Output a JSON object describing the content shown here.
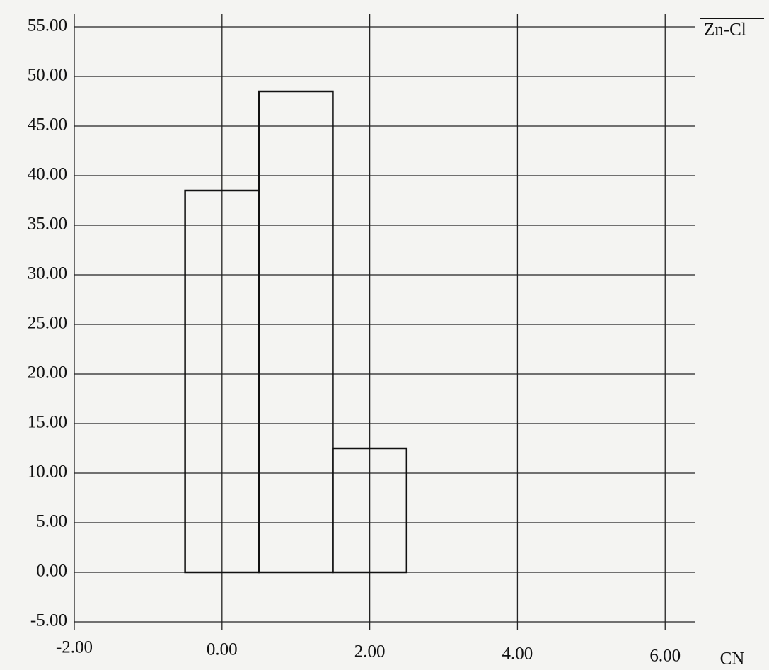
{
  "chart_data": {
    "type": "histogram",
    "x_label": "CN",
    "bins": [
      -0.5,
      0.5,
      1.5,
      2.5
    ],
    "series": [
      {
        "name": "Zn-Cl",
        "color": "#111111",
        "values": [
          38.5,
          48.5,
          12.5
        ]
      }
    ],
    "xlim": [
      -2,
      6.4
    ],
    "xticks": [
      {
        "value": -2,
        "label": "-2.00"
      },
      {
        "value": 0,
        "label": "0.00"
      },
      {
        "value": 2,
        "label": "2.00"
      },
      {
        "value": 4,
        "label": "4.00"
      },
      {
        "value": 6,
        "label": "6.00"
      }
    ],
    "ylim": [
      -5,
      55
    ],
    "yticks": [
      {
        "value": -5,
        "label": "-5.00"
      },
      {
        "value": 0,
        "label": "0.00"
      },
      {
        "value": 5,
        "label": "5.00"
      },
      {
        "value": 10,
        "label": "10.00"
      },
      {
        "value": 15,
        "label": "15.00"
      },
      {
        "value": 20,
        "label": "20.00"
      },
      {
        "value": 25,
        "label": "25.00"
      },
      {
        "value": 30,
        "label": "30.00"
      },
      {
        "value": 35,
        "label": "35.00"
      },
      {
        "value": 40,
        "label": "40.00"
      },
      {
        "value": 45,
        "label": "45.00"
      },
      {
        "value": 50,
        "label": "50.00"
      },
      {
        "value": 55,
        "label": "55.00"
      }
    ],
    "grid": true
  }
}
